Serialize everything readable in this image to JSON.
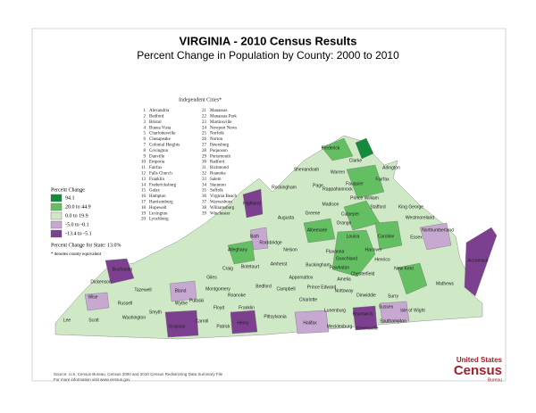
{
  "header": {
    "title": "VIRGINIA - 2010 Census Results",
    "subtitle": "Percent Change in Population by County:  2000 to 2010"
  },
  "cities": {
    "heading": "Independent Cities*",
    "items": [
      {
        "number": "1",
        "name": "Alexandria"
      },
      {
        "number": "2",
        "name": "Bedford"
      },
      {
        "number": "3",
        "name": "Bristol"
      },
      {
        "number": "4",
        "name": "Buena Vista"
      },
      {
        "number": "5",
        "name": "Charlottesville"
      },
      {
        "number": "6",
        "name": "Chesapeake"
      },
      {
        "number": "7",
        "name": "Colonial Heights"
      },
      {
        "number": "8",
        "name": "Covington"
      },
      {
        "number": "9",
        "name": "Danville"
      },
      {
        "number": "10",
        "name": "Emporia"
      },
      {
        "number": "11",
        "name": "Fairfax"
      },
      {
        "number": "12",
        "name": "Falls Church"
      },
      {
        "number": "13",
        "name": "Franklin"
      },
      {
        "number": "14",
        "name": "Fredericksburg"
      },
      {
        "number": "15",
        "name": "Galax"
      },
      {
        "number": "16",
        "name": "Hampton"
      },
      {
        "number": "17",
        "name": "Harrisonburg"
      },
      {
        "number": "18",
        "name": "Hopewell"
      },
      {
        "number": "19",
        "name": "Lexington"
      },
      {
        "number": "20",
        "name": "Lynchburg"
      },
      {
        "number": "21",
        "name": "Manassas"
      },
      {
        "number": "22",
        "name": "Manassas Park"
      },
      {
        "number": "23",
        "name": "Martinsville"
      },
      {
        "number": "24",
        "name": "Newport News"
      },
      {
        "number": "25",
        "name": "Norfolk"
      },
      {
        "number": "26",
        "name": "Norton"
      },
      {
        "number": "27",
        "name": "Petersburg"
      },
      {
        "number": "28",
        "name": "Poquoson"
      },
      {
        "number": "29",
        "name": "Portsmouth"
      },
      {
        "number": "30",
        "name": "Radford"
      },
      {
        "number": "31",
        "name": "Richmond"
      },
      {
        "number": "32",
        "name": "Roanoke"
      },
      {
        "number": "33",
        "name": "Salem"
      },
      {
        "number": "34",
        "name": "Staunton"
      },
      {
        "number": "35",
        "name": "Suffolk"
      },
      {
        "number": "36",
        "name": "Virginia Beach"
      },
      {
        "number": "37",
        "name": "Waynesboro"
      },
      {
        "number": "38",
        "name": "Williamsburg"
      },
      {
        "number": "39",
        "name": "Winchester"
      }
    ]
  },
  "legend": {
    "title": "Percent Change",
    "items": [
      {
        "label": "94.1",
        "color": "#138a3c"
      },
      {
        "label": "20.0 to 44.9",
        "color": "#63bf62"
      },
      {
        "label": "0.0 to 19.9",
        "color": "#cfe9c6"
      },
      {
        "label": "-5.0 to -0.1",
        "color": "#c7a8d0"
      },
      {
        "label": "-13.4 to -5.1",
        "color": "#7d3f8f"
      }
    ],
    "state_change": "Percent Change for State:  13.0%",
    "note": "* denotes county equivalent"
  },
  "counties": [
    "Frederick",
    "Clarke",
    "Shenandoah",
    "Warren",
    "Fauquier",
    "Rockingham",
    "Page",
    "Rappahannock",
    "Prince William",
    "Arlington",
    "Fairfax",
    "Culpeper",
    "Stafford",
    "King George",
    "Westmoreland",
    "Northumberland",
    "Madison",
    "Greene",
    "Orange",
    "Augusta",
    "Highland",
    "Bath",
    "Rockbridge",
    "Albemarle",
    "Fluvanna",
    "Louisa",
    "Caroline",
    "Hanover",
    "Goochland",
    "Powhatan",
    "Chesterfield",
    "Henrico",
    "Nelson",
    "Amherst",
    "Buckingham",
    "Appomattox",
    "Bedford",
    "Campbell",
    "Alleghany",
    "Botetourt",
    "Craig",
    "Roanoke",
    "Montgomery",
    "Giles",
    "Pulaski",
    "Floyd",
    "Franklin",
    "Pittsylvania",
    "Halifax",
    "Charlotte",
    "Lunenburg",
    "Mecklenburg",
    "Brunswick",
    "Greensville",
    "Prince Edward",
    "Nottoway",
    "Amelia",
    "Dinwiddie",
    "Sussex",
    "Southampton",
    "Isle of Wight",
    "Surry",
    "Carroll",
    "Patrick",
    "Henry",
    "Grayson",
    "Smyth",
    "Wythe",
    "Bland",
    "Tazewell",
    "Buchanan",
    "Dickenson",
    "Wise",
    "Russell",
    "Washington",
    "Scott",
    "Lee",
    "Accomack",
    "Mathews",
    "New Kent",
    "Essex"
  ],
  "footer": {
    "source": "Source:  U.S. Census Bureau, Census 2000 and 2010 Census Redistricting Data Summary File",
    "info": "For more information visit www.census.gov"
  },
  "logo": {
    "top": "United States",
    "main": "Census",
    "bottom": "Bureau"
  }
}
